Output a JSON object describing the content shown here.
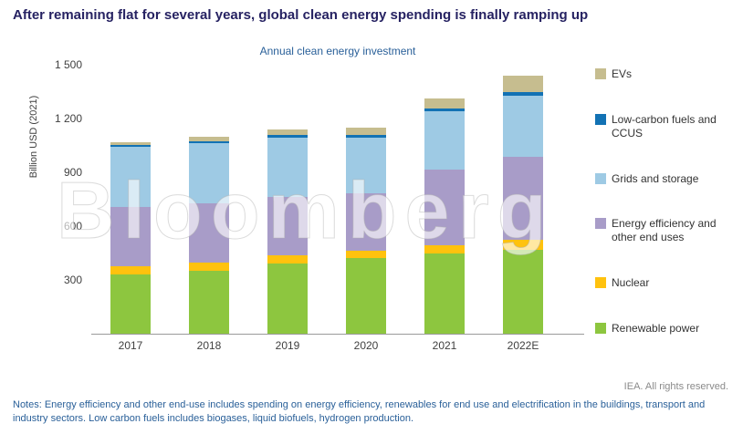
{
  "page": {
    "title": "After remaining flat for several years, global clean energy spending is finally ramping up",
    "watermark": "Bloomberg",
    "source": "IEA. All rights reserved.",
    "notes": "Notes: Energy efficiency and other end-use includes spending on energy efficiency, renewables for end use and electrification in the buildings, transport and industry sectors. Low carbon fuels includes biogases, liquid biofuels, hydrogen production."
  },
  "chart_data": {
    "type": "bar",
    "stacked": true,
    "title": "Annual clean energy investment",
    "ylabel": "Billion USD (2021)",
    "categories": [
      "2017",
      "2018",
      "2019",
      "2020",
      "2021",
      "2022E"
    ],
    "ylim": [
      0,
      1500
    ],
    "yticks": [
      300,
      600,
      900,
      1200,
      1500
    ],
    "ytick_labels": [
      "300",
      "600",
      "900",
      "1 200",
      "1 500"
    ],
    "grid": false,
    "legend_position": "right",
    "legend_order_top_to_bottom": [
      "EVs",
      "Low-carbon fuels and CCUS",
      "Grids and storage",
      "Energy efficiency and other end uses",
      "Nuclear",
      "Renewable power"
    ],
    "series": [
      {
        "name": "Renewable power",
        "color": "#8dc63f",
        "values": [
          330,
          350,
          390,
          420,
          445,
          470
        ]
      },
      {
        "name": "Nuclear",
        "color": "#ffc20e",
        "values": [
          45,
          45,
          45,
          45,
          50,
          55
        ]
      },
      {
        "name": "Energy efficiency and other end uses",
        "color": "#a89cc8",
        "values": [
          330,
          330,
          330,
          320,
          420,
          460
        ]
      },
      {
        "name": "Grids and storage",
        "color": "#9ecae4",
        "values": [
          340,
          340,
          330,
          310,
          325,
          340
        ]
      },
      {
        "name": "Low-carbon fuels and CCUS",
        "color": "#1272b4",
        "values": [
          10,
          10,
          12,
          12,
          18,
          25
        ]
      },
      {
        "name": "EVs",
        "color": "#c6bd8f",
        "values": [
          15,
          25,
          30,
          40,
          55,
          90
        ]
      }
    ],
    "totals_approx": [
      1070,
      1100,
      1137,
      1147,
      1313,
      1440
    ]
  }
}
